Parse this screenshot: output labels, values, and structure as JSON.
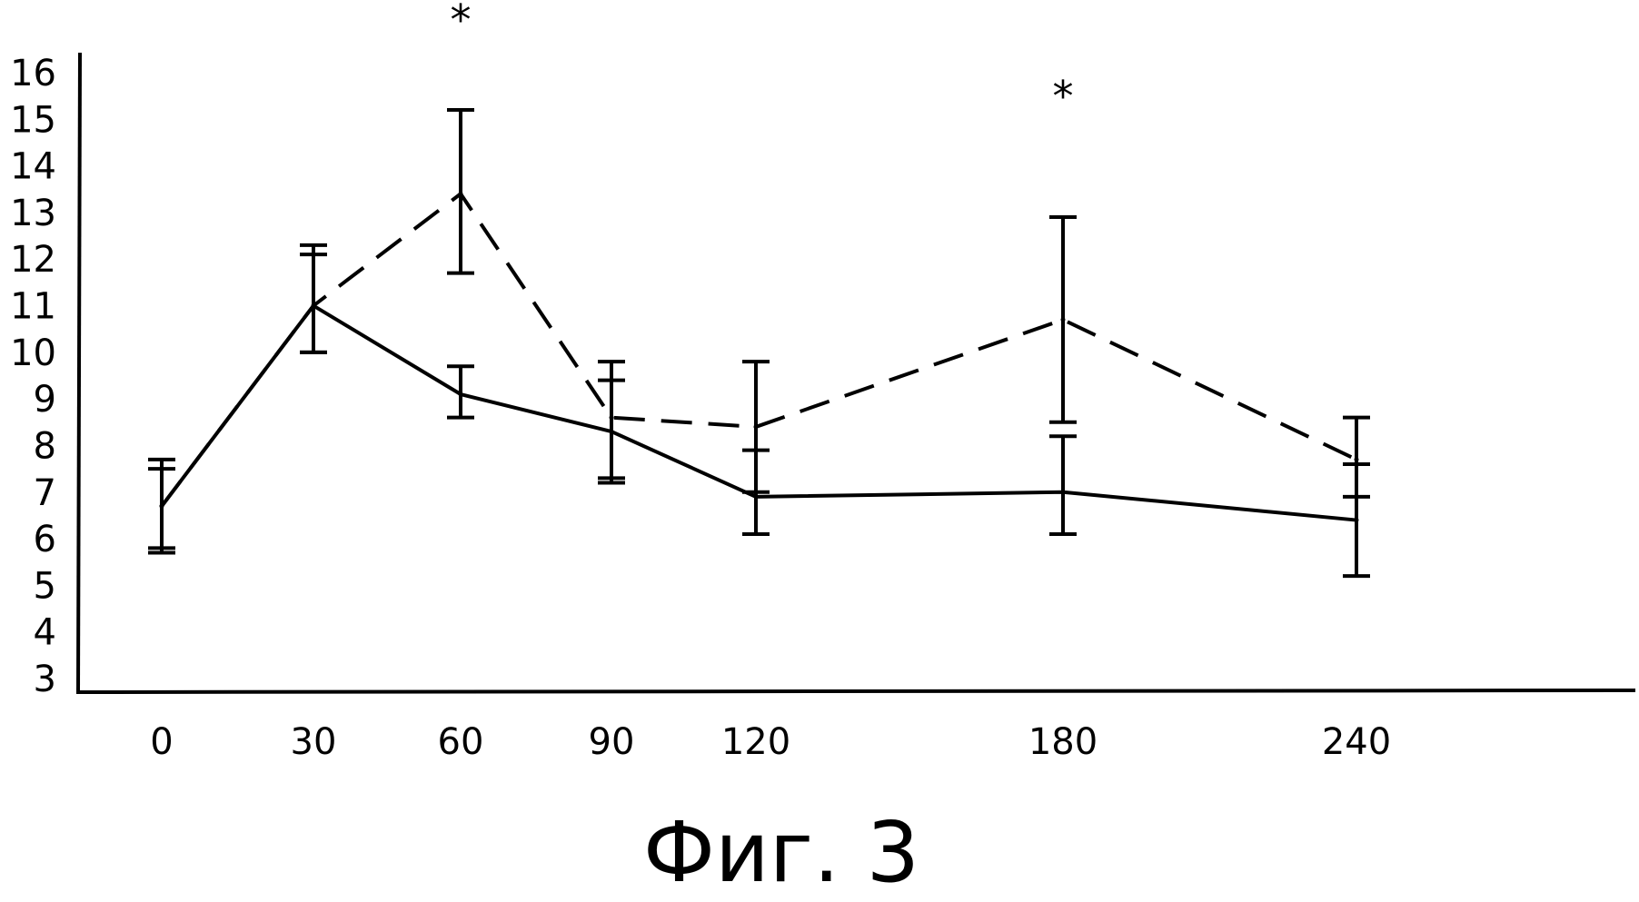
{
  "figure": {
    "caption": "Фиг. 3"
  },
  "chart_data": {
    "type": "line",
    "title": "",
    "xlabel": "",
    "ylabel": "",
    "x": [
      0,
      30,
      60,
      90,
      120,
      180,
      240
    ],
    "x_tick_labels": [
      "0",
      "30",
      "60",
      "90",
      "120",
      "180",
      "240"
    ],
    "y_tick_labels": [
      "3",
      "4",
      "5",
      "6",
      "7",
      "8",
      "9",
      "10",
      "11",
      "12",
      "13",
      "14",
      "15",
      "16"
    ],
    "xlim": [
      -30,
      325
    ],
    "ylim": [
      3,
      16
    ],
    "grid": false,
    "legend": "none",
    "series": [
      {
        "style": "solid",
        "values": [
          6.7,
          11.0,
          9.1,
          8.3,
          6.9,
          7.0,
          6.4
        ],
        "error_low": [
          5.7,
          10.0,
          8.6,
          7.2,
          6.1,
          6.1,
          5.2
        ],
        "error_high": [
          7.5,
          12.1,
          9.7,
          9.4,
          7.9,
          8.2,
          7.6
        ]
      },
      {
        "style": "dashed",
        "values": [
          6.7,
          11.0,
          13.4,
          8.6,
          8.4,
          10.7,
          7.7
        ],
        "error_low": [
          5.8,
          10.0,
          11.7,
          7.3,
          7.0,
          8.5,
          6.9
        ],
        "error_high": [
          7.7,
          12.3,
          15.2,
          9.8,
          9.8,
          12.9,
          8.6
        ]
      }
    ],
    "annotations": [
      {
        "text": "*",
        "x": 60
      },
      {
        "text": "*",
        "x": 180
      }
    ]
  }
}
